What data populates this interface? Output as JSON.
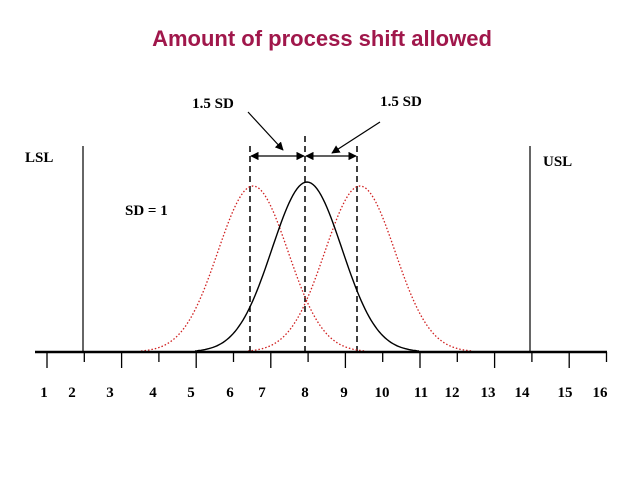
{
  "title": "Amount of process shift allowed",
  "annotations": {
    "left_shift": "1.5 SD",
    "right_shift": "1.5 SD",
    "lsl": "LSL",
    "usl": "USL",
    "sd": "SD = 1"
  },
  "axis": {
    "labels": [
      "1",
      "2",
      "3",
      "4",
      "5",
      "6",
      "7",
      "8",
      "9",
      "10",
      "11",
      "12",
      "13",
      "14",
      "15",
      "16"
    ]
  }
}
